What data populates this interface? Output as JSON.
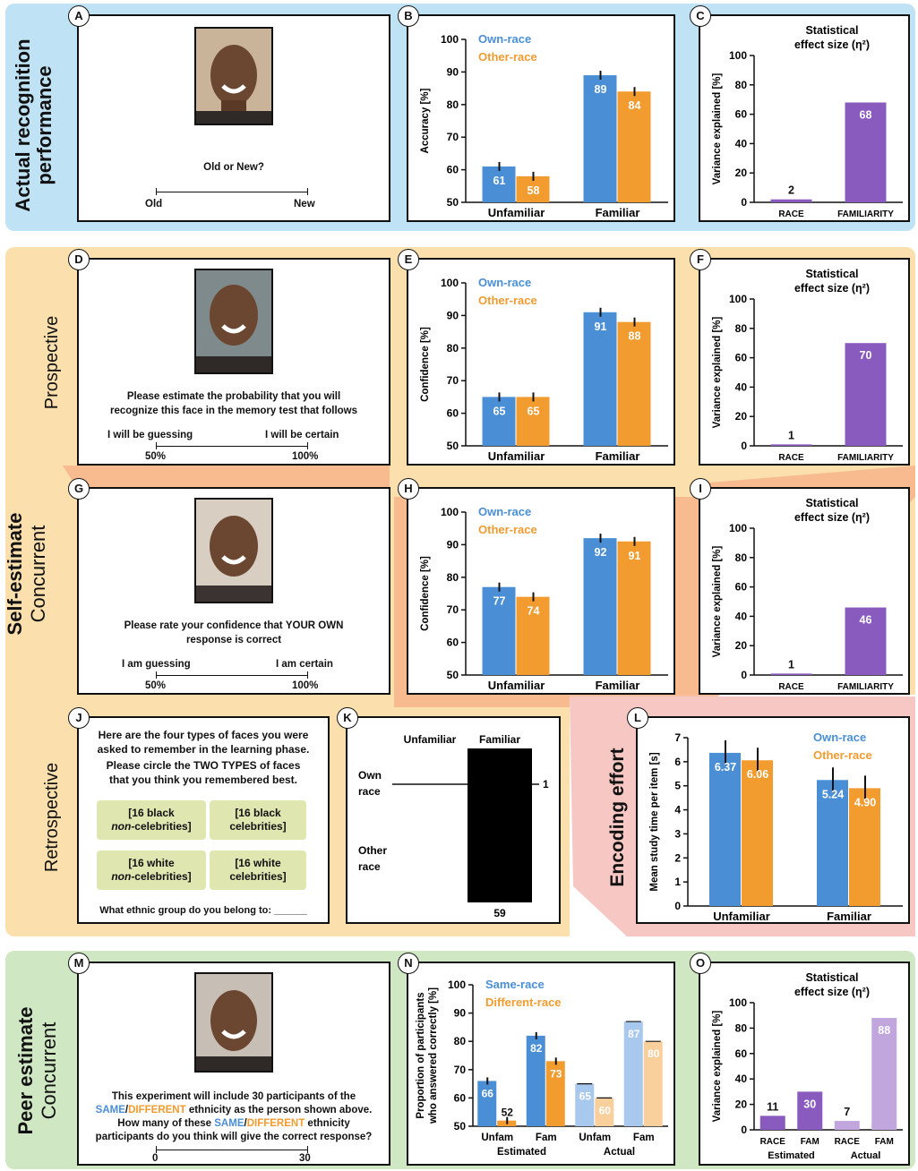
{
  "rows": {
    "actual": {
      "title_line1": "Actual recognition",
      "title_line2": "performance"
    },
    "self": {
      "title_bold": "Self-estimate",
      "title_light": "Concurrent",
      "prospective": "Prospective",
      "retrospective": "Retrospective"
    },
    "peer": {
      "title_bold": "Peer estimate",
      "title_light": "Concurrent"
    }
  },
  "colors": {
    "blue": "#4a8fd6",
    "orange": "#f29b2f",
    "purple": "#8a5bbf",
    "light_blue": "#a8c8ee",
    "light_orange": "#f9cf9c",
    "light_purple": "#c0a6dd",
    "band_blue": "#bfe2f4",
    "band_orange": "#fbe0ae",
    "band_salmon": "#f6b48a",
    "band_pink": "#f7c8c3",
    "band_green": "#cfe7c2"
  },
  "panel_letters": {
    "A": "A",
    "B": "B",
    "C": "C",
    "D": "D",
    "E": "E",
    "F": "F",
    "G": "G",
    "H": "H",
    "I": "I",
    "J": "J",
    "K": "K",
    "L": "L",
    "M": "M",
    "N": "N",
    "O": "O"
  },
  "panelA": {
    "question": "Old or New?",
    "left": "Old",
    "right": "New"
  },
  "panelD": {
    "line1": "Please estimate the probability that you will",
    "line2": "recognize this face in the memory test that follows",
    "left_label": "I will be guessing",
    "right_label": "I will be certain",
    "left_value": "50%",
    "right_value": "100%"
  },
  "panelG": {
    "line1_pre": "Please rate your confidence that ",
    "line1_bold": "YOUR OWN",
    "line2": "response is correct",
    "left_label": "I am guessing",
    "right_label": "I am certain",
    "left_value": "50%",
    "right_value": "100%"
  },
  "panelJ": {
    "line1": "Here are the four types of faces you were",
    "line2": "asked to remember in the learning phase.",
    "line3_pre": "Please circle the ",
    "line3_bold": "TWO TYPES",
    "line3_post": " of faces",
    "line4": "that you think you remembered best.",
    "boxes": [
      {
        "l1": "[16 black",
        "l2_em": "non",
        "l2_rest": "-celebrities]"
      },
      {
        "l1": "[16 black",
        "l2": "celebrities]"
      },
      {
        "l1": "[16 white",
        "l2_em": "non",
        "l2_rest": "-celebrities]"
      },
      {
        "l1": "[16 white",
        "l2": "celebrities]"
      }
    ],
    "ethnic_question": "What ethnic group do you belong to: ______"
  },
  "panelK": {
    "col1": "Unfamiliar",
    "col2": "Familiar",
    "row1a": "Own",
    "row1b": "race",
    "row2a": "Other",
    "row2b": "race",
    "marker_value": "1",
    "bottom_value": "59"
  },
  "panelL": {
    "title": "Encoding effort"
  },
  "panelM": {
    "line1": "This experiment will include 30 participants of the",
    "line2_same": "SAME",
    "line2_slash": "/",
    "line2_diff": "DIFFERENT",
    "line2_rest": " ethnicity as the person shown above.",
    "line3_pre": "How many of these ",
    "line3_same": "SAME",
    "line3_slash": "/",
    "line3_diff": "DIFFERENT",
    "line3_rest": " ethnicity",
    "line4": "participants do you think will give the correct response?",
    "left_value": "0",
    "right_value": "30"
  },
  "chart_data": [
    {
      "id": "B",
      "type": "bar",
      "ylabel": "Accuracy [%]",
      "ylim": [
        50,
        100
      ],
      "yticks": [
        50,
        60,
        70,
        80,
        90,
        100
      ],
      "categories": [
        "Unfamiliar",
        "Familiar"
      ],
      "legend": "top-left",
      "series": [
        {
          "name": "Own-race",
          "values": [
            61,
            89
          ]
        },
        {
          "name": "Other-race",
          "values": [
            58,
            84
          ]
        }
      ]
    },
    {
      "id": "C",
      "type": "bar",
      "title_line1": "Statistical",
      "title_line2": "effect size (η²)",
      "ylabel": "Variance explained [%]",
      "ylim": [
        0,
        100
      ],
      "yticks": [
        0,
        20,
        40,
        60,
        80,
        100
      ],
      "categories": [
        "RACE",
        "FAMILIARITY"
      ],
      "values": [
        2,
        68
      ]
    },
    {
      "id": "E",
      "type": "bar",
      "ylabel": "Confidence [%]",
      "ylim": [
        50,
        100
      ],
      "yticks": [
        50,
        60,
        70,
        80,
        90,
        100
      ],
      "categories": [
        "Unfamiliar",
        "Familiar"
      ],
      "legend": "top-left",
      "series": [
        {
          "name": "Own-race",
          "values": [
            65,
            91
          ]
        },
        {
          "name": "Other-race",
          "values": [
            65,
            88
          ]
        }
      ]
    },
    {
      "id": "F",
      "type": "bar",
      "title_line1": "Statistical",
      "title_line2": "effect size (η²)",
      "ylabel": "Variance explained [%]",
      "ylim": [
        0,
        100
      ],
      "yticks": [
        0,
        20,
        40,
        60,
        80,
        100
      ],
      "categories": [
        "RACE",
        "FAMILIARITY"
      ],
      "values": [
        1,
        70
      ]
    },
    {
      "id": "H",
      "type": "bar",
      "ylabel": "Confidence [%]",
      "ylim": [
        50,
        100
      ],
      "yticks": [
        50,
        60,
        70,
        80,
        90,
        100
      ],
      "categories": [
        "Unfamiliar",
        "Familiar"
      ],
      "legend": "top-left",
      "series": [
        {
          "name": "Own-race",
          "values": [
            77,
            92
          ]
        },
        {
          "name": "Other-race",
          "values": [
            74,
            91
          ]
        }
      ]
    },
    {
      "id": "I",
      "type": "bar",
      "title_line1": "Statistical",
      "title_line2": "effect size (η²)",
      "ylabel": "Variance explained [%]",
      "ylim": [
        0,
        100
      ],
      "yticks": [
        0,
        20,
        40,
        60,
        80,
        100
      ],
      "categories": [
        "RACE",
        "FAMILIARITY"
      ],
      "values": [
        1,
        46
      ]
    },
    {
      "id": "L",
      "type": "bar",
      "ylabel": "Mean study time per item [s]",
      "ylim": [
        0,
        7
      ],
      "yticks": [
        0,
        1,
        2,
        3,
        4,
        5,
        6,
        7
      ],
      "categories": [
        "Unfamiliar",
        "Familiar"
      ],
      "legend": "top-right",
      "series": [
        {
          "name": "Own-race",
          "values": [
            6.37,
            5.24
          ],
          "labels": [
            "6.37",
            "5.24"
          ]
        },
        {
          "name": "Other-race",
          "values": [
            6.06,
            4.9
          ],
          "labels": [
            "6.06",
            "4.90"
          ]
        }
      ]
    },
    {
      "id": "N",
      "type": "bar",
      "ylabel_line1": "Proportion of participants",
      "ylabel_line2": "who answered correctly [%]",
      "ylim": [
        50,
        100
      ],
      "yticks": [
        50,
        60,
        70,
        80,
        90,
        100
      ],
      "legend": "top-left",
      "categories": [
        "Unfam",
        "Fam",
        "Unfam",
        "Fam"
      ],
      "groups": [
        "Estimated",
        "Actual"
      ],
      "series": [
        {
          "name": "Same-race",
          "values": [
            66,
            82,
            65,
            87
          ]
        },
        {
          "name": "Different-race",
          "values": [
            52,
            73,
            60,
            80
          ]
        }
      ]
    },
    {
      "id": "O",
      "type": "bar",
      "title_line1": "Statistical",
      "title_line2": "effect size (η²)",
      "ylabel": "Variance explained [%]",
      "ylim": [
        0,
        100
      ],
      "yticks": [
        0,
        20,
        40,
        60,
        80,
        100
      ],
      "categories": [
        "RACE",
        "FAM",
        "RACE",
        "FAM"
      ],
      "groups": [
        "Estimated",
        "Actual"
      ],
      "values": [
        11,
        30,
        7,
        88
      ]
    }
  ]
}
